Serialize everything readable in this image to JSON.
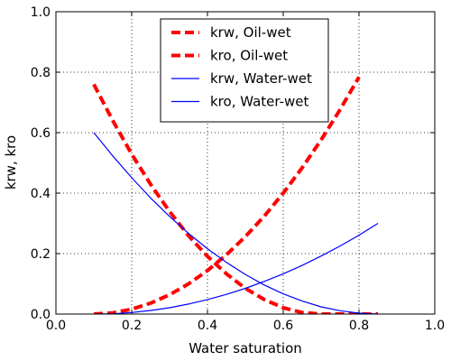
{
  "chart_data": {
    "type": "line",
    "title": "",
    "xlabel": "Water saturation",
    "ylabel": "krw, kro",
    "xlim": [
      0.0,
      1.0
    ],
    "ylim": [
      0.0,
      1.0
    ],
    "grid": true,
    "legend_position": "upper-center",
    "x_ticks": [
      "0.0",
      "0.2",
      "0.4",
      "0.6",
      "0.8",
      "1.0"
    ],
    "y_ticks": [
      "0.0",
      "0.2",
      "0.4",
      "0.6",
      "0.8",
      "1.0"
    ],
    "series": [
      {
        "name": "krw, Oil-wet",
        "color": "#ff0000",
        "style": "dashed",
        "x": [
          0.1,
          0.15,
          0.2,
          0.25,
          0.3,
          0.35,
          0.4,
          0.45,
          0.5,
          0.55,
          0.6,
          0.65,
          0.7,
          0.75,
          0.8
        ],
        "y": [
          0.0,
          0.004,
          0.016,
          0.036,
          0.064,
          0.1,
          0.144,
          0.196,
          0.256,
          0.324,
          0.4,
          0.484,
          0.576,
          0.676,
          0.784
        ]
      },
      {
        "name": "kro, Oil-wet",
        "color": "#ff0000",
        "style": "dashed",
        "x": [
          0.1,
          0.15,
          0.2,
          0.25,
          0.3,
          0.35,
          0.4,
          0.45,
          0.5,
          0.55,
          0.6,
          0.65,
          0.7,
          0.75,
          0.8,
          0.85
        ],
        "y": [
          0.76,
          0.64,
          0.529,
          0.429,
          0.339,
          0.259,
          0.191,
          0.133,
          0.085,
          0.048,
          0.021,
          0.005,
          0.0,
          0.0,
          0.0,
          0.0
        ]
      },
      {
        "name": "krw, Water-wet",
        "color": "#0000ff",
        "style": "solid",
        "x": [
          0.1,
          0.15,
          0.2,
          0.25,
          0.3,
          0.35,
          0.4,
          0.45,
          0.5,
          0.55,
          0.6,
          0.65,
          0.7,
          0.75,
          0.8,
          0.85
        ],
        "y": [
          0.0,
          0.001,
          0.005,
          0.012,
          0.021,
          0.033,
          0.048,
          0.065,
          0.085,
          0.108,
          0.133,
          0.161,
          0.192,
          0.225,
          0.261,
          0.3
        ]
      },
      {
        "name": "kro, Water-wet",
        "color": "#0000ff",
        "style": "solid",
        "x": [
          0.1,
          0.15,
          0.2,
          0.25,
          0.3,
          0.35,
          0.4,
          0.45,
          0.5,
          0.55,
          0.6,
          0.65,
          0.7,
          0.75,
          0.8,
          0.85
        ],
        "y": [
          0.6,
          0.523,
          0.451,
          0.384,
          0.323,
          0.267,
          0.216,
          0.171,
          0.131,
          0.096,
          0.067,
          0.043,
          0.024,
          0.011,
          0.003,
          0.0
        ]
      }
    ]
  }
}
